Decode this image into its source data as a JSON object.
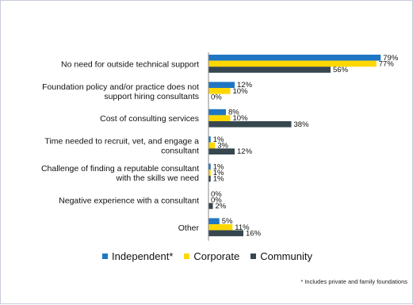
{
  "chart_data": {
    "type": "bar",
    "orientation": "horizontal",
    "categories": [
      [
        "No need for outside technical support"
      ],
      [
        "Foundation policy and/or practice does not",
        "support hiring consultants"
      ],
      [
        "Cost of consulting services"
      ],
      [
        "Time needed to recruit, vet, and engage a",
        "consultant"
      ],
      [
        "Challenge of finding a reputable consultant",
        "with the skills we need"
      ],
      [
        "Negative experience with a consultant"
      ],
      [
        "Other"
      ]
    ],
    "series": [
      {
        "name": "Independent*",
        "color": "#1f77c4",
        "values": [
          79,
          12,
          8,
          1,
          1,
          0,
          5
        ]
      },
      {
        "name": "Corporate",
        "color": "#ffd700",
        "values": [
          77,
          10,
          10,
          3,
          1,
          0,
          11
        ]
      },
      {
        "name": "Community",
        "color": "#37474f",
        "values": [
          56,
          0,
          38,
          12,
          1,
          2,
          16
        ]
      }
    ],
    "value_suffix": "%",
    "xlim": [
      0,
      80
    ],
    "grid": false,
    "legend_position": "bottom"
  },
  "footnote": "* Includes private and family foundations"
}
